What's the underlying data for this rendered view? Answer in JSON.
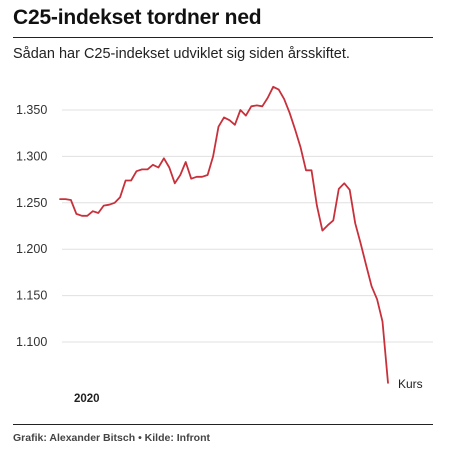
{
  "header": {
    "title": "C25-indekset tordner ned",
    "subtitle": "Sådan har C25-indekset udviklet sig siden årsskiftet."
  },
  "footer": {
    "credit": "Grafik: Alexander Bitsch • Kilde: Infront"
  },
  "colors": {
    "line": "#c8313c",
    "grid": "#e0e0e0",
    "rule": "#222222"
  },
  "chart_data": {
    "type": "line",
    "title": "C25-indekset tordner ned",
    "xlabel": "",
    "ylabel": "",
    "x_tick_labels": [
      "2020"
    ],
    "y_ticks": [
      1100,
      1150,
      1200,
      1250,
      1300,
      1350
    ],
    "y_tick_labels": [
      "1.100",
      "1.150",
      "1.200",
      "1.250",
      "1.300",
      "1.350"
    ],
    "ylim": [
      1060,
      1380
    ],
    "grid": true,
    "series": [
      {
        "name": "Kurs",
        "values": [
          1254,
          1254,
          1253,
          1238,
          1236,
          1236,
          1241,
          1239,
          1247,
          1248,
          1250,
          1256,
          1274,
          1274,
          1284,
          1286,
          1286,
          1291,
          1288,
          1298,
          1288,
          1271,
          1280,
          1294,
          1276,
          1278,
          1278,
          1280,
          1300,
          1332,
          1342,
          1339,
          1334,
          1350,
          1344,
          1354,
          1355,
          1354,
          1363,
          1375,
          1372,
          1362,
          1347,
          1329,
          1310,
          1285,
          1285,
          1247,
          1220,
          1226,
          1231,
          1265,
          1271,
          1264,
          1228,
          1206,
          1183,
          1160,
          1146,
          1122,
          1056
        ]
      }
    ]
  }
}
